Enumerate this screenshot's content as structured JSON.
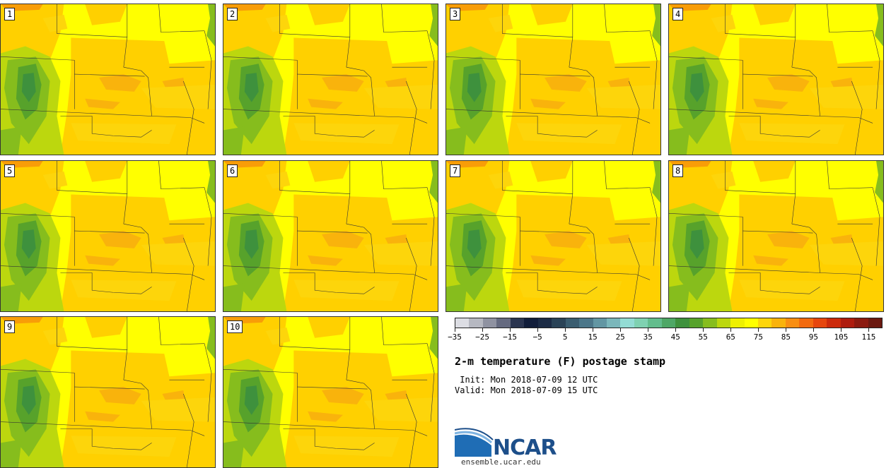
{
  "stamps": [
    {
      "label": "1"
    },
    {
      "label": "2"
    },
    {
      "label": "3"
    },
    {
      "label": "4"
    },
    {
      "label": "5"
    },
    {
      "label": "6"
    },
    {
      "label": "7"
    },
    {
      "label": "8"
    },
    {
      "label": "9"
    },
    {
      "label": "10"
    }
  ],
  "colorbar": {
    "colors": [
      "#dcdde3",
      "#b6b8c1",
      "#8f92a1",
      "#656a80",
      "#2b3550",
      "#111d3a",
      "#1c2b45",
      "#2a4357",
      "#3a5d70",
      "#4b7689",
      "#6296a3",
      "#7bb7bb",
      "#93dcd4",
      "#7fd1b1",
      "#63bd8d",
      "#4ea766",
      "#3e913d",
      "#57a22b",
      "#86bd1d",
      "#bcd70e",
      "#eef001",
      "#ffff00",
      "#fdd50b",
      "#f9b30c",
      "#f88e12",
      "#f26a0f",
      "#e6460d",
      "#cc2a0b",
      "#ae1c0e",
      "#8b1a0f",
      "#6b1910"
    ],
    "tick_labels": [
      "−35",
      "−25",
      "−15",
      "−5",
      "5",
      "15",
      "25",
      "35",
      "45",
      "55",
      "65",
      "75",
      "85",
      "95",
      "105",
      "115"
    ]
  },
  "title": "2-m temperature (F) postage stamp",
  "init": " Init: Mon 2018-07-09 12 UTC",
  "valid": "Valid: Mon 2018-07-09 15 UTC",
  "logo": {
    "text": "NCAR",
    "url": "ensemble.ucar.edu"
  }
}
